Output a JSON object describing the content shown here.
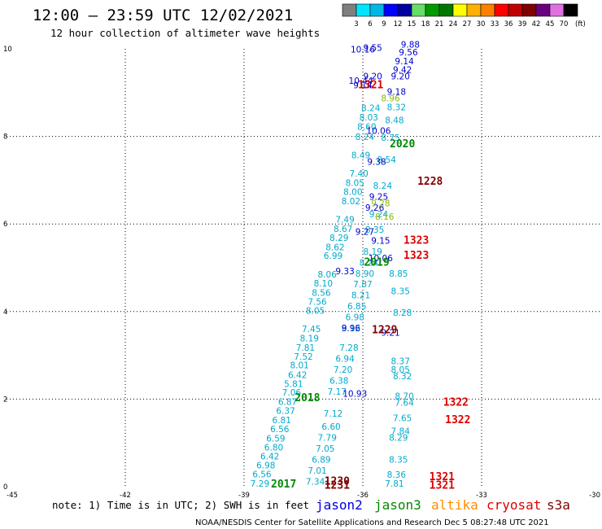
{
  "header": {
    "title": "12:00 – 23:59 UTC 12/02/2021",
    "subtitle": "12 hour collection of altimeter wave heights"
  },
  "colorbar": {
    "unit_label": "(ft)",
    "levels": [
      "3",
      "6",
      "9",
      "12",
      "15",
      "18",
      "21",
      "24",
      "27",
      "30",
      "33",
      "36",
      "39",
      "42",
      "45",
      "70"
    ],
    "colors": [
      "#7f7f7f",
      "#00e5ff",
      "#00b7e6",
      "#0000ff",
      "#0000a0",
      "#66dd66",
      "#009900",
      "#007700",
      "#ffff00",
      "#ffb000",
      "#ff7f00",
      "#ff0000",
      "#c00000",
      "#800000",
      "#6a0080",
      "#e070e0",
      "#000000"
    ]
  },
  "footer": {
    "note": "note: 1) Time is in UTC; 2) SWH is in feet",
    "credit": "NOAA/NESDIS Center for Satellite Applications and Research   Dec  5 08:27:48 UTC 2021",
    "satellites": [
      {
        "name": "jason2",
        "color": "#0000dd"
      },
      {
        "name": "jason3",
        "color": "#008800"
      },
      {
        "name": "altika",
        "color": "#ff8c00"
      },
      {
        "name": "cryosat",
        "color": "#dd0000"
      },
      {
        "name": "s3a",
        "color": "#800000"
      }
    ]
  },
  "chart_data": {
    "type": "scatter",
    "title": "12:00 – 23:59 UTC 12/02/2021",
    "xlim": [
      -45,
      -30
    ],
    "ylim": [
      0,
      10
    ],
    "x_ticks": [
      -45,
      -42,
      -39,
      -36,
      -33,
      -30
    ],
    "y_ticks": [
      0,
      2,
      4,
      6,
      8,
      10
    ],
    "grid": true,
    "series": [
      {
        "name": "track_west",
        "color": "#00aacc",
        "points": [
          [
            -38.6,
            0.0,
            "7.29"
          ],
          [
            -38.55,
            0.21,
            "6.56"
          ],
          [
            -38.45,
            0.42,
            "6.98"
          ],
          [
            -38.35,
            0.62,
            "6.42"
          ],
          [
            -38.25,
            0.83,
            "6.80"
          ],
          [
            -38.2,
            1.03,
            "6.59"
          ],
          [
            -38.1,
            1.25,
            "6.56"
          ],
          [
            -38.05,
            1.45,
            "6.81"
          ],
          [
            -37.95,
            1.66,
            "6.37"
          ],
          [
            -37.9,
            1.87,
            "6.87"
          ],
          [
            -37.8,
            2.08,
            "7.06"
          ],
          [
            -37.75,
            2.28,
            "5.81"
          ],
          [
            -37.65,
            2.48,
            "6.42"
          ],
          [
            -37.6,
            2.7,
            "8.01"
          ],
          [
            -37.5,
            2.9,
            "7.52"
          ],
          [
            -37.45,
            3.1,
            "7.81"
          ],
          [
            -37.35,
            3.32,
            "8.19"
          ],
          [
            -37.3,
            3.53,
            "7.45"
          ],
          [
            -37.2,
            3.95,
            "8.05"
          ],
          [
            -37.15,
            4.15,
            "7.56"
          ],
          [
            -37.05,
            4.36,
            "8.56"
          ],
          [
            -37.0,
            4.57,
            "8.10"
          ],
          [
            -36.9,
            4.78,
            "8.06"
          ],
          [
            -36.75,
            5.2,
            "6.99"
          ],
          [
            -36.7,
            5.4,
            "8.62"
          ],
          [
            -36.6,
            5.61,
            "8.29"
          ],
          [
            -36.5,
            5.82,
            "8.67"
          ],
          [
            -36.45,
            6.03,
            "7.49"
          ],
          [
            -36.3,
            6.45,
            "8.02"
          ],
          [
            -36.25,
            6.66,
            "8.00"
          ],
          [
            -36.2,
            6.87,
            "8.05"
          ],
          [
            -36.1,
            7.08,
            "7.40"
          ],
          [
            -36.05,
            7.5,
            "8.49"
          ],
          [
            -35.95,
            7.92,
            "8.24"
          ],
          [
            -35.9,
            8.15,
            "8.60"
          ],
          [
            -35.85,
            8.36,
            "8.03"
          ],
          [
            -35.8,
            8.58,
            "8.24"
          ]
        ]
      },
      {
        "name": "track_mid",
        "color": "#00aacc",
        "points": [
          [
            -37.2,
            0.05,
            "7.34"
          ],
          [
            -37.15,
            0.3,
            "7.01"
          ],
          [
            -37.05,
            0.55,
            "6.89"
          ],
          [
            -36.95,
            0.8,
            "7.05"
          ],
          [
            -36.9,
            1.05,
            "7.79"
          ],
          [
            -36.8,
            1.3,
            "6.60"
          ],
          [
            -36.75,
            1.6,
            "7.12"
          ],
          [
            -36.65,
            2.1,
            "7.17"
          ],
          [
            -36.6,
            2.35,
            "6.38"
          ],
          [
            -36.5,
            2.6,
            "7.20"
          ],
          [
            -36.45,
            2.85,
            "6.94"
          ],
          [
            -36.35,
            3.1,
            "7.28"
          ],
          [
            -36.3,
            3.55,
            "8.12"
          ],
          [
            -36.2,
            3.8,
            "6.98"
          ],
          [
            -36.15,
            4.05,
            "6.85"
          ],
          [
            -36.05,
            4.3,
            "8.21"
          ],
          [
            -36.0,
            4.55,
            "7.87"
          ],
          [
            -35.95,
            4.8,
            "8.90"
          ],
          [
            -35.85,
            5.05,
            "8.24"
          ],
          [
            -35.75,
            5.3,
            "8.19"
          ],
          [
            -35.7,
            5.8,
            "8.35"
          ],
          [
            -35.6,
            6.15,
            "9.24"
          ],
          [
            -35.5,
            6.8,
            "8.24"
          ],
          [
            -35.4,
            7.4,
            "8.54"
          ],
          [
            -35.3,
            7.9,
            "8.75"
          ],
          [
            -35.2,
            8.3,
            "8.48"
          ],
          [
            -35.15,
            8.6,
            "8.32"
          ]
        ]
      },
      {
        "name": "track_east",
        "color": "#00aacc",
        "points": [
          [
            -35.2,
            0.0,
            "7.81"
          ],
          [
            -35.15,
            0.2,
            "8.36"
          ],
          [
            -35.1,
            0.55,
            "8.35"
          ],
          [
            -35.1,
            1.05,
            "8.29"
          ],
          [
            -35.05,
            1.2,
            "7.84"
          ],
          [
            -35.0,
            1.5,
            "7.65"
          ],
          [
            -34.95,
            1.85,
            "7.64"
          ],
          [
            -34.95,
            2.0,
            "8.70"
          ],
          [
            -35.0,
            2.45,
            "8.32"
          ],
          [
            -35.05,
            2.6,
            "8.05"
          ],
          [
            -35.05,
            2.8,
            "8.37"
          ],
          [
            -35.0,
            3.9,
            "8.28"
          ],
          [
            -35.05,
            4.4,
            "8.35"
          ],
          [
            -35.1,
            4.8,
            "8.85"
          ]
        ]
      },
      {
        "name": "north_cluster",
        "color": "#0000cc",
        "points": [
          [
            -36.0,
            9.92,
            "10.16"
          ],
          [
            -35.75,
            9.95,
            "9.55"
          ],
          [
            -34.8,
            10.03,
            "9.88"
          ],
          [
            -34.85,
            9.85,
            "9.56"
          ],
          [
            -34.95,
            9.65,
            "9.14"
          ],
          [
            -35.0,
            9.45,
            "9.42"
          ],
          [
            -35.05,
            9.3,
            "9.20"
          ],
          [
            -36.05,
            9.2,
            "10.44"
          ],
          [
            -36.0,
            9.1,
            "9.14"
          ],
          [
            -35.75,
            9.3,
            "9.20"
          ],
          [
            -35.15,
            8.95,
            "9.18"
          ],
          [
            -35.6,
            8.06,
            "10.06"
          ],
          [
            -35.65,
            7.35,
            "9.38"
          ],
          [
            -35.6,
            6.55,
            "9.25"
          ],
          [
            -35.7,
            6.3,
            "9.26"
          ],
          [
            -35.55,
            5.15,
            "10.06"
          ],
          [
            -35.95,
            5.75,
            "9.27"
          ],
          [
            -36.45,
            4.85,
            "9.33"
          ],
          [
            -36.3,
            3.55,
            "9.96"
          ],
          [
            -36.2,
            2.05,
            "10.93"
          ],
          [
            -35.3,
            3.45,
            "9.21"
          ],
          [
            -35.55,
            5.55,
            "9.15"
          ]
        ]
      },
      {
        "name": "altika",
        "color": "#88bb00",
        "points": [
          [
            -35.55,
            6.4,
            "9.28"
          ],
          [
            -35.45,
            6.1,
            "8.16"
          ],
          [
            -35.3,
            8.8,
            "8.96"
          ]
        ]
      }
    ],
    "time_labels": [
      {
        "text": "2017",
        "x": -38.0,
        "y": -0.02,
        "color": "#008800"
      },
      {
        "text": "2018",
        "x": -37.4,
        "y": 1.95,
        "color": "#008800"
      },
      {
        "text": "2019",
        "x": -35.65,
        "y": 5.05,
        "color": "#008800"
      },
      {
        "text": "2020",
        "x": -35.0,
        "y": 7.75,
        "color": "#008800"
      },
      {
        "text": "1228",
        "x": -34.3,
        "y": 6.9,
        "color": "#800000"
      },
      {
        "text": "1229",
        "x": -35.45,
        "y": 3.5,
        "color": "#800000"
      },
      {
        "text": "1230",
        "x": -36.65,
        "y": 0.05,
        "color": "#800000"
      },
      {
        "text": "1231",
        "x": -36.65,
        "y": -0.05,
        "color": "#800000"
      },
      {
        "text": "1321",
        "x": -35.8,
        "y": 9.1,
        "color": "#dd0000"
      },
      {
        "text": "1321",
        "x": -34.0,
        "y": 0.15,
        "color": "#dd0000"
      },
      {
        "text": "1321",
        "x": -34.0,
        "y": -0.05,
        "color": "#dd0000"
      },
      {
        "text": "1322",
        "x": -33.65,
        "y": 1.85,
        "color": "#dd0000"
      },
      {
        "text": "1322",
        "x": -33.6,
        "y": 1.45,
        "color": "#dd0000"
      },
      {
        "text": "1323",
        "x": -34.65,
        "y": 5.55,
        "color": "#dd0000"
      },
      {
        "text": "1323",
        "x": -34.65,
        "y": 5.2,
        "color": "#dd0000"
      }
    ]
  }
}
